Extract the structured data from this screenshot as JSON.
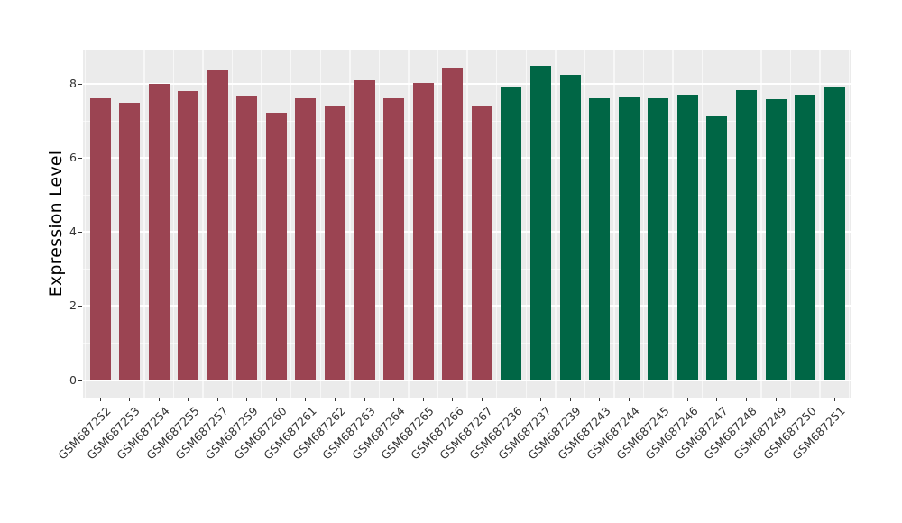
{
  "chart_data": {
    "type": "bar",
    "title": "",
    "xlabel": "",
    "ylabel": "Expression Level",
    "ylim": [
      0,
      8.9
    ],
    "yticks": [
      0,
      2,
      4,
      6,
      8
    ],
    "yticks_minor": [
      1,
      3,
      5,
      7
    ],
    "grid": true,
    "legend": "none",
    "panel_background": "#EBEBEB",
    "gridline_color": "#FFFFFF",
    "groups": [
      {
        "name": "group-1",
        "color": "#9B4452",
        "categories": [
          "GSM687252",
          "GSM687253",
          "GSM687254",
          "GSM687255",
          "GSM687257",
          "GSM687259",
          "GSM687260",
          "GSM687261",
          "GSM687262",
          "GSM687263",
          "GSM687264",
          "GSM687265",
          "GSM687266",
          "GSM687267"
        ],
        "values": [
          7.6,
          7.5,
          8.0,
          7.8,
          8.37,
          7.65,
          7.22,
          7.6,
          7.38,
          8.1,
          7.62,
          8.03,
          8.45,
          7.4
        ]
      },
      {
        "name": "group-2",
        "color": "#006645",
        "categories": [
          "GSM687236",
          "GSM687237",
          "GSM687239",
          "GSM687243",
          "GSM687244",
          "GSM687245",
          "GSM687246",
          "GSM687247",
          "GSM687248",
          "GSM687249",
          "GSM687250",
          "GSM687251"
        ],
        "values": [
          7.9,
          8.48,
          8.25,
          7.6,
          7.64,
          7.62,
          7.72,
          7.12,
          7.82,
          7.58,
          7.7,
          7.92
        ]
      }
    ]
  }
}
